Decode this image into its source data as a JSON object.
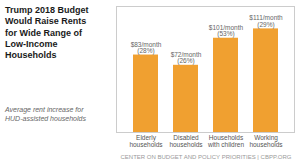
{
  "chart_data": {
    "type": "bar",
    "title": "Trump 2018 Budget\nWould Raise Rents\nfor Wide Range of\nLow-Income\nHouseholds",
    "subtitle": "Average rent increase for\nHUD-assisted households",
    "caption": "CENTER ON BUDGET AND POLICY PRIORITIES | CBPP.ORG",
    "categories": [
      "Elderly\nhouseholds",
      "Disabled\nhouseholds",
      "Households\nwith children",
      "Working\nhouseholds"
    ],
    "values": [
      83,
      72,
      101,
      111
    ],
    "value_labels": [
      "$83/month",
      "$72/month",
      "$101/month",
      "$111/month"
    ],
    "annotations": [
      "(28%)",
      "(26%)",
      "(53%)",
      "(29%)"
    ],
    "color": "#F0A030",
    "ylim": [
      0,
      135
    ],
    "grid": false,
    "data_labels": true,
    "tick_labels": "x"
  }
}
